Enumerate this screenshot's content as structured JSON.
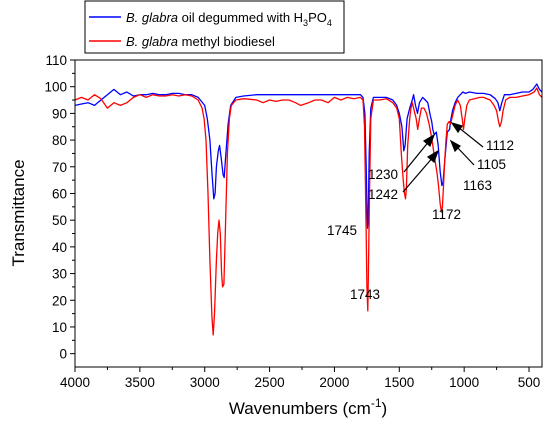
{
  "chart_data": {
    "type": "line",
    "xlabel": "Wavenumbers (cm",
    "xlabel_sup": "-1",
    "xlabel_close": ")",
    "ylabel": "Transmittance",
    "xlim": [
      4000,
      400
    ],
    "ylim": [
      -5,
      110
    ],
    "x_ticks": [
      4000,
      3500,
      3000,
      2500,
      2000,
      1500,
      1000,
      500
    ],
    "y_ticks": [
      0,
      10,
      20,
      30,
      40,
      50,
      60,
      70,
      80,
      90,
      100,
      110
    ],
    "x_tick_labels": [
      "4000",
      "3500",
      "3000",
      "2500",
      "2000",
      "1500",
      "1000",
      "500"
    ],
    "y_tick_labels": [
      "0",
      "10",
      "20",
      "30",
      "40",
      "50",
      "60",
      "70",
      "80",
      "90",
      "100",
      "110"
    ],
    "grid": false,
    "legend_position": "top-left",
    "legend": [
      {
        "italic": "B. glabra",
        "rest": " oil degummed with H",
        "sub1": "3",
        "mid": "PO",
        "sub2": "4"
      },
      {
        "italic": "B. glabra",
        "rest": " methyl biodiesel"
      }
    ],
    "series": [
      {
        "name": "B. glabra oil degummed with H3PO4",
        "color": "#0000ff",
        "points": [
          [
            4000,
            93
          ],
          [
            3950,
            93.5
          ],
          [
            3900,
            94
          ],
          [
            3850,
            93
          ],
          [
            3800,
            95
          ],
          [
            3750,
            97
          ],
          [
            3700,
            99
          ],
          [
            3650,
            97
          ],
          [
            3600,
            98
          ],
          [
            3550,
            96.5
          ],
          [
            3500,
            97
          ],
          [
            3450,
            97
          ],
          [
            3400,
            97.5
          ],
          [
            3350,
            97
          ],
          [
            3300,
            97
          ],
          [
            3250,
            97.5
          ],
          [
            3200,
            97.5
          ],
          [
            3150,
            97
          ],
          [
            3100,
            97
          ],
          [
            3050,
            96
          ],
          [
            3000,
            93
          ],
          [
            2980,
            88
          ],
          [
            2960,
            80
          ],
          [
            2945,
            68
          ],
          [
            2930,
            58
          ],
          [
            2920,
            60
          ],
          [
            2910,
            70
          ],
          [
            2895,
            76
          ],
          [
            2885,
            78
          ],
          [
            2870,
            72
          ],
          [
            2858,
            67
          ],
          [
            2850,
            66
          ],
          [
            2840,
            73
          ],
          [
            2820,
            86
          ],
          [
            2800,
            93
          ],
          [
            2760,
            96
          ],
          [
            2700,
            96.5
          ],
          [
            2600,
            97
          ],
          [
            2500,
            97
          ],
          [
            2400,
            97
          ],
          [
            2300,
            97
          ],
          [
            2200,
            97
          ],
          [
            2100,
            97
          ],
          [
            2000,
            97
          ],
          [
            1900,
            97
          ],
          [
            1850,
            97
          ],
          [
            1800,
            97
          ],
          [
            1780,
            96
          ],
          [
            1765,
            90
          ],
          [
            1755,
            70
          ],
          [
            1748,
            52
          ],
          [
            1745,
            47
          ],
          [
            1740,
            50
          ],
          [
            1732,
            75
          ],
          [
            1720,
            92
          ],
          [
            1700,
            96
          ],
          [
            1650,
            96
          ],
          [
            1600,
            96
          ],
          [
            1550,
            95
          ],
          [
            1520,
            93
          ],
          [
            1500,
            90
          ],
          [
            1480,
            85
          ],
          [
            1465,
            76
          ],
          [
            1455,
            78
          ],
          [
            1440,
            88
          ],
          [
            1420,
            92
          ],
          [
            1400,
            95
          ],
          [
            1390,
            97
          ],
          [
            1375,
            93
          ],
          [
            1360,
            90
          ],
          [
            1345,
            94
          ],
          [
            1320,
            96
          ],
          [
            1300,
            95
          ],
          [
            1280,
            94
          ],
          [
            1260,
            89
          ],
          [
            1250,
            87
          ],
          [
            1242,
            84
          ],
          [
            1230,
            82
          ],
          [
            1215,
            83
          ],
          [
            1200,
            78
          ],
          [
            1185,
            68
          ],
          [
            1172,
            63
          ],
          [
            1163,
            64
          ],
          [
            1150,
            72
          ],
          [
            1130,
            83
          ],
          [
            1112,
            84
          ],
          [
            1105,
            87
          ],
          [
            1090,
            91
          ],
          [
            1070,
            94
          ],
          [
            1050,
            96
          ],
          [
            1030,
            97
          ],
          [
            1010,
            98
          ],
          [
            990,
            97.5
          ],
          [
            960,
            98
          ],
          [
            900,
            97.5
          ],
          [
            850,
            97.5
          ],
          [
            800,
            97
          ],
          [
            760,
            95.5
          ],
          [
            740,
            94
          ],
          [
            725,
            91
          ],
          [
            710,
            94
          ],
          [
            690,
            97
          ],
          [
            650,
            97
          ],
          [
            600,
            97.5
          ],
          [
            550,
            98
          ],
          [
            500,
            98
          ],
          [
            470,
            99
          ],
          [
            440,
            101
          ],
          [
            420,
            99
          ],
          [
            400,
            98
          ]
        ]
      },
      {
        "name": "B. glabra methyl biodiesel",
        "color": "#ff0000",
        "points": [
          [
            4000,
            95
          ],
          [
            3950,
            96
          ],
          [
            3900,
            95
          ],
          [
            3850,
            97
          ],
          [
            3800,
            95.5
          ],
          [
            3750,
            92
          ],
          [
            3700,
            94
          ],
          [
            3650,
            93
          ],
          [
            3600,
            94
          ],
          [
            3550,
            96
          ],
          [
            3500,
            97
          ],
          [
            3450,
            96
          ],
          [
            3400,
            97
          ],
          [
            3350,
            96.5
          ],
          [
            3300,
            96.5
          ],
          [
            3250,
            97
          ],
          [
            3200,
            96.5
          ],
          [
            3150,
            97
          ],
          [
            3100,
            96.5
          ],
          [
            3050,
            95
          ],
          [
            3020,
            92
          ],
          [
            3005,
            88
          ],
          [
            2990,
            80
          ],
          [
            2975,
            60
          ],
          [
            2960,
            35
          ],
          [
            2945,
            14
          ],
          [
            2935,
            7
          ],
          [
            2925,
            15
          ],
          [
            2910,
            35
          ],
          [
            2900,
            45
          ],
          [
            2890,
            50
          ],
          [
            2880,
            45
          ],
          [
            2870,
            30
          ],
          [
            2862,
            25
          ],
          [
            2852,
            26
          ],
          [
            2840,
            48
          ],
          [
            2825,
            75
          ],
          [
            2810,
            88
          ],
          [
            2795,
            93
          ],
          [
            2760,
            95
          ],
          [
            2700,
            95.5
          ],
          [
            2600,
            95
          ],
          [
            2550,
            94
          ],
          [
            2500,
            95
          ],
          [
            2450,
            94.5
          ],
          [
            2400,
            95
          ],
          [
            2350,
            95
          ],
          [
            2300,
            94
          ],
          [
            2260,
            93
          ],
          [
            2200,
            94
          ],
          [
            2150,
            95
          ],
          [
            2100,
            95
          ],
          [
            2050,
            94
          ],
          [
            2000,
            96
          ],
          [
            1950,
            95
          ],
          [
            1900,
            96
          ],
          [
            1850,
            95.5
          ],
          [
            1800,
            96
          ],
          [
            1780,
            95
          ],
          [
            1768,
            85
          ],
          [
            1758,
            55
          ],
          [
            1750,
            25
          ],
          [
            1746,
            20
          ],
          [
            1743,
            16
          ],
          [
            1738,
            30
          ],
          [
            1730,
            60
          ],
          [
            1720,
            88
          ],
          [
            1700,
            95
          ],
          [
            1650,
            95
          ],
          [
            1600,
            95.5
          ],
          [
            1550,
            94
          ],
          [
            1520,
            92
          ],
          [
            1500,
            88
          ],
          [
            1485,
            75
          ],
          [
            1470,
            65
          ],
          [
            1460,
            60
          ],
          [
            1452,
            58
          ],
          [
            1445,
            62
          ],
          [
            1435,
            78
          ],
          [
            1420,
            88
          ],
          [
            1410,
            92
          ],
          [
            1400,
            94
          ],
          [
            1385,
            91
          ],
          [
            1370,
            88
          ],
          [
            1358,
            84
          ],
          [
            1345,
            88
          ],
          [
            1330,
            92
          ],
          [
            1310,
            92
          ],
          [
            1290,
            90
          ],
          [
            1270,
            86
          ],
          [
            1255,
            82
          ],
          [
            1242,
            78
          ],
          [
            1230,
            74
          ],
          [
            1220,
            71
          ],
          [
            1210,
            68
          ],
          [
            1198,
            63
          ],
          [
            1185,
            56
          ],
          [
            1175,
            53
          ],
          [
            1168,
            55
          ],
          [
            1160,
            62
          ],
          [
            1150,
            72
          ],
          [
            1140,
            80
          ],
          [
            1130,
            86
          ],
          [
            1115,
            87
          ],
          [
            1105,
            86
          ],
          [
            1090,
            89
          ],
          [
            1070,
            93
          ],
          [
            1050,
            95
          ],
          [
            1030,
            93
          ],
          [
            1015,
            88
          ],
          [
            1005,
            84
          ],
          [
            995,
            88
          ],
          [
            980,
            93
          ],
          [
            960,
            95
          ],
          [
            920,
            95.5
          ],
          [
            880,
            96
          ],
          [
            850,
            96
          ],
          [
            800,
            95
          ],
          [
            770,
            93
          ],
          [
            750,
            91
          ],
          [
            735,
            87
          ],
          [
            725,
            85
          ],
          [
            712,
            87
          ],
          [
            700,
            91
          ],
          [
            680,
            95
          ],
          [
            650,
            96
          ],
          [
            600,
            96
          ],
          [
            550,
            96.5
          ],
          [
            500,
            97
          ],
          [
            460,
            98
          ],
          [
            440,
            99.5
          ],
          [
            420,
            97
          ],
          [
            400,
            96
          ]
        ]
      }
    ],
    "annotations": [
      {
        "text": "1745"
      },
      {
        "text": "1743"
      },
      {
        "text": "1230"
      },
      {
        "text": "1242"
      },
      {
        "text": "1172"
      },
      {
        "text": "1163"
      },
      {
        "text": "1112"
      },
      {
        "text": "1105"
      }
    ]
  }
}
